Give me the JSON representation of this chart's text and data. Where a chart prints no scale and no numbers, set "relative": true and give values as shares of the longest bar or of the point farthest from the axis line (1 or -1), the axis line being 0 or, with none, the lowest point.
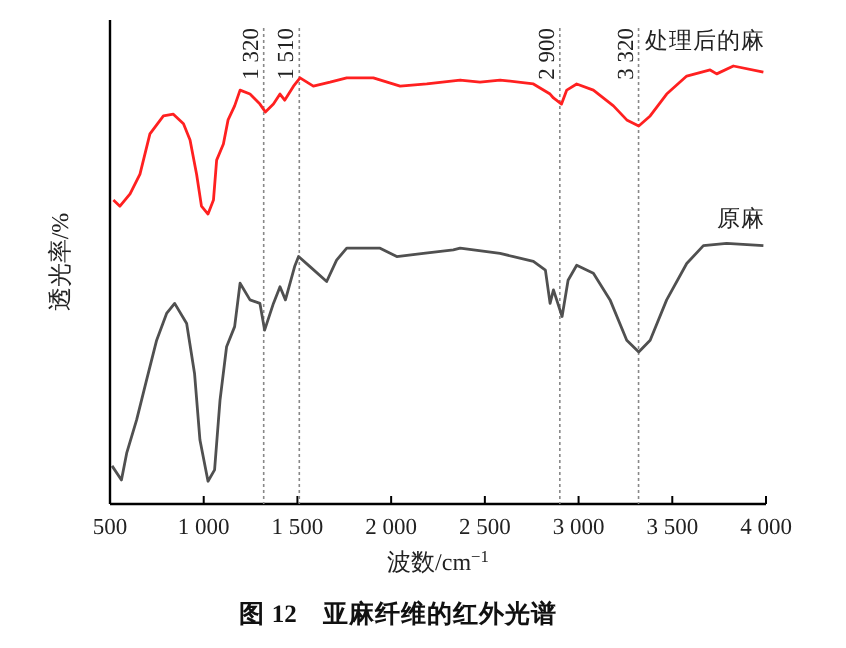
{
  "chart_data": {
    "type": "line",
    "title": "图 12　亚麻纤维的红外光谱",
    "xlabel": "波数/cm$^{−1}$",
    "ylabel": "透光率/%",
    "relative": true,
    "xlim": [
      500,
      4000
    ],
    "xticks": [
      500,
      {
        "value": 1000,
        "label": "1 000"
      },
      {
        "value": 1500,
        "label": "1 500"
      },
      {
        "value": 2000,
        "label": "2 000"
      },
      {
        "value": 2500,
        "label": "2 500"
      },
      {
        "value": 3000,
        "label": "3 000"
      },
      {
        "value": 3500,
        "label": "3 500"
      },
      {
        "value": 4000,
        "label": "4 000"
      }
    ],
    "tick_labels": "x",
    "marker": "none",
    "line_style": "solid",
    "ref_lines": [
      {
        "axis": "x",
        "value": 1320,
        "label": "1 320",
        "color": "#888888",
        "line_style": "dotted"
      },
      {
        "axis": "x",
        "value": 1510,
        "label": "1 510",
        "color": "#888888",
        "line_style": "dotted"
      },
      {
        "axis": "x",
        "value": 2900,
        "label": "2 900",
        "color": "#888888",
        "line_style": "dotted"
      },
      {
        "axis": "x",
        "value": 3320,
        "label": "3 320",
        "color": "#888888",
        "line_style": "dotted"
      }
    ],
    "series": [
      {
        "name": "处理后的麻",
        "color": "#ff2020",
        "x": [
          518,
          553,
          607,
          660,
          713,
          785,
          838,
          892,
          927,
          962,
          988,
          1023,
          1052,
          1069,
          1105,
          1130,
          1165,
          1194,
          1247,
          1300,
          1329,
          1372,
          1407,
          1432,
          1479,
          1514,
          1585,
          1674,
          1763,
          1905,
          2048,
          2190,
          2368,
          2474,
          2581,
          2759,
          2848,
          2866,
          2909,
          2937,
          2990,
          3079,
          3186,
          3257,
          3321,
          3382,
          3470,
          3577,
          3702,
          3737,
          3826,
          3986
        ],
        "values": [
          0.694,
          0.68,
          0.708,
          0.753,
          0.845,
          0.886,
          0.89,
          0.868,
          0.831,
          0.753,
          0.68,
          0.662,
          0.694,
          0.785,
          0.822,
          0.877,
          0.909,
          0.945,
          0.936,
          0.913,
          0.895,
          0.913,
          0.936,
          0.922,
          0.954,
          0.973,
          0.954,
          0.963,
          0.973,
          0.973,
          0.954,
          0.959,
          0.968,
          0.963,
          0.968,
          0.959,
          0.936,
          0.927,
          0.913,
          0.945,
          0.959,
          0.945,
          0.909,
          0.877,
          0.863,
          0.886,
          0.936,
          0.977,
          0.991,
          0.982,
          1,
          0.986
        ]
      },
      {
        "name": "原麻",
        "color": "#505050",
        "x": [
          511,
          561,
          589,
          642,
          695,
          749,
          802,
          845,
          909,
          951,
          980,
          1023,
          1058,
          1087,
          1122,
          1165,
          1194,
          1247,
          1300,
          1325,
          1372,
          1407,
          1436,
          1485,
          1506,
          1567,
          1656,
          1709,
          1763,
          1941,
          2030,
          2172,
          2332,
          2368,
          2581,
          2759,
          2823,
          2848,
          2866,
          2912,
          2944,
          2990,
          3079,
          3168,
          3257,
          3321,
          3382,
          3470,
          3577,
          3666,
          3790,
          3986
        ],
        "values": [
          0.087,
          0.055,
          0.116,
          0.192,
          0.283,
          0.374,
          0.435,
          0.458,
          0.412,
          0.298,
          0.146,
          0.052,
          0.078,
          0.237,
          0.359,
          0.405,
          0.504,
          0.466,
          0.458,
          0.397,
          0.458,
          0.496,
          0.466,
          0.542,
          0.565,
          0.542,
          0.508,
          0.557,
          0.584,
          0.584,
          0.565,
          0.572,
          0.58,
          0.584,
          0.572,
          0.554,
          0.534,
          0.458,
          0.489,
          0.428,
          0.511,
          0.545,
          0.527,
          0.466,
          0.374,
          0.347,
          0.374,
          0.466,
          0.549,
          0.59,
          0.595,
          0.59
        ]
      }
    ]
  }
}
